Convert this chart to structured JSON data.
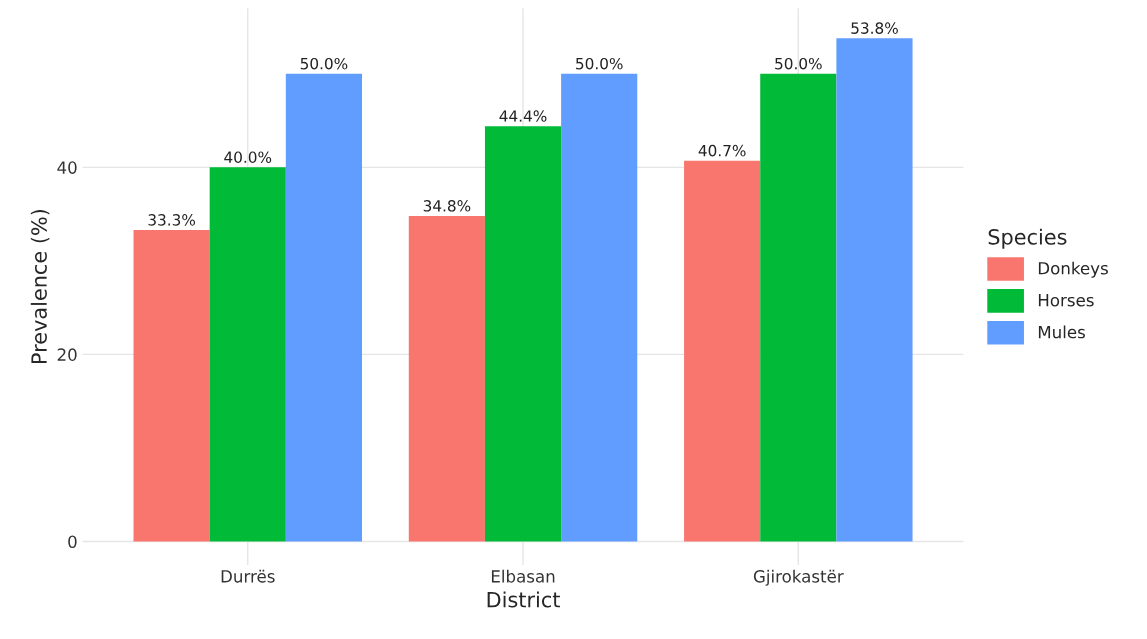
{
  "chart_data": {
    "type": "bar",
    "xlabel": "District",
    "ylabel": "Prevalence (%)",
    "legend_title": "Species",
    "categories": [
      "Durrës",
      "Elbasan",
      "Gjirokastër"
    ],
    "series": [
      {
        "name": "Donkeys",
        "color": "#f8766d",
        "values": [
          33.3,
          34.8,
          40.7
        ],
        "value_labels": [
          "33.3%",
          "34.8%",
          "40.7%"
        ]
      },
      {
        "name": "Horses",
        "color": "#00ba38",
        "values": [
          40.0,
          44.4,
          50.0
        ],
        "value_labels": [
          "40.0%",
          "44.4%",
          "50.0%"
        ]
      },
      {
        "name": "Mules",
        "color": "#619cff",
        "values": [
          50.0,
          50.0,
          53.8
        ],
        "value_labels": [
          "50.0%",
          "50.0%",
          "53.8%"
        ]
      }
    ],
    "ylim": [
      -2.5,
      57
    ],
    "yticks": [
      0,
      20,
      40
    ],
    "grid": true,
    "legend": "right"
  }
}
